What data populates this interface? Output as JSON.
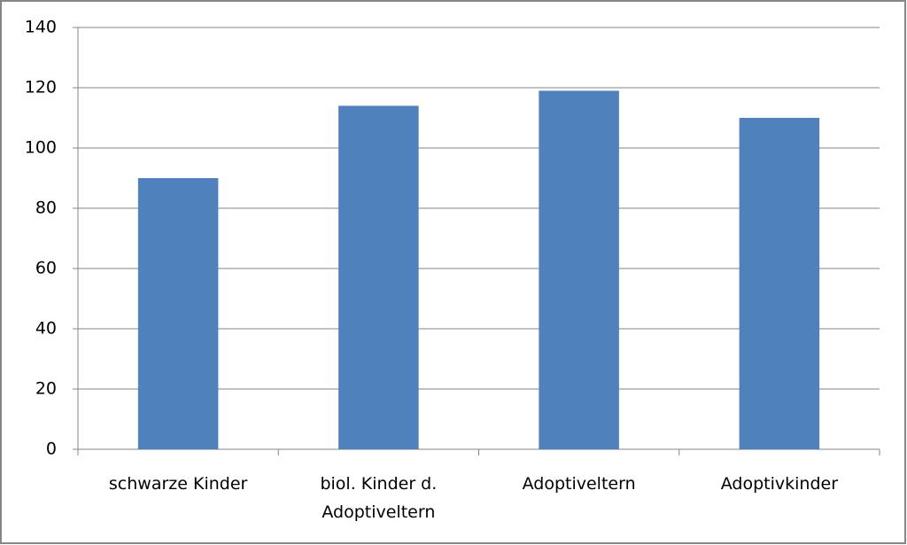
{
  "chart_data": {
    "type": "bar",
    "categories": [
      "schwarze Kinder",
      "biol. Kinder d. Adoptiveltern",
      "Adoptiveltern",
      "Adoptivkinder"
    ],
    "values": [
      90,
      114,
      119,
      110
    ],
    "color": "#4f81bd",
    "ylim": [
      0,
      140
    ],
    "yticks": [
      0,
      20,
      40,
      60,
      80,
      100,
      120,
      140
    ],
    "grid": true
  }
}
